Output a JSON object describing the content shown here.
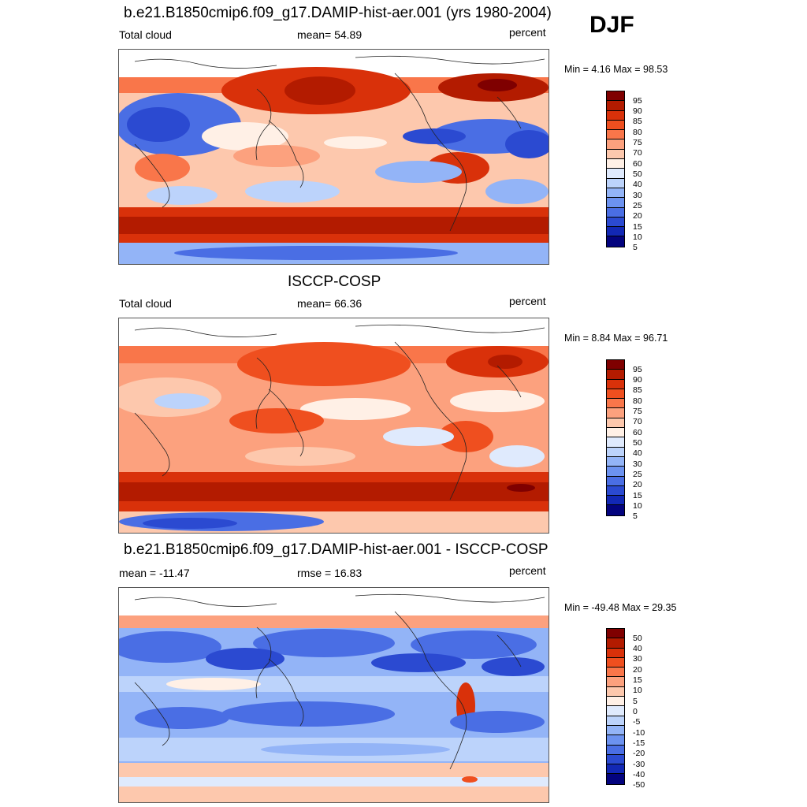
{
  "season": "DJF",
  "panels": [
    {
      "title": "b.e21.B1850cmip6.f09_g17.DAMIP-hist-aer.001 (yrs 1980-2004)",
      "left_label": "Total cloud",
      "center_label": "mean=  54.89",
      "right_label": "percent",
      "minmax": "Min =   4.16 Max =  98.53",
      "colorbar_labels": [
        "95",
        "90",
        "85",
        "80",
        "75",
        "70",
        "60",
        "50",
        "40",
        "30",
        "25",
        "20",
        "15",
        "10",
        "5"
      ]
    },
    {
      "title": "ISCCP-COSP",
      "left_label": "Total cloud",
      "center_label": "mean=  66.36",
      "right_label": "percent",
      "minmax": "Min =   8.84 Max =  96.71",
      "colorbar_labels": [
        "95",
        "90",
        "85",
        "80",
        "75",
        "70",
        "60",
        "50",
        "40",
        "30",
        "25",
        "20",
        "15",
        "10",
        "5"
      ]
    },
    {
      "title": "b.e21.B1850cmip6.f09_g17.DAMIP-hist-aer.001 - ISCCP-COSP",
      "left_label": "mean = -11.47",
      "center_label": "rmse =  16.83",
      "right_label": "percent",
      "minmax": "Min = -49.48 Max =  29.35",
      "colorbar_labels": [
        "50",
        "40",
        "30",
        "20",
        "15",
        "10",
        "5",
        "0",
        "-5",
        "-10",
        "-15",
        "-20",
        "-30",
        "-40",
        "-50"
      ]
    }
  ],
  "colors": {
    "palette": [
      "#7f0000",
      "#b31b00",
      "#d9310a",
      "#ef4f1f",
      "#f9764a",
      "#fca17e",
      "#fdc8ad",
      "#fff0e6",
      "#dfeafd",
      "#bcd3fb",
      "#93b4f7",
      "#6c92f0",
      "#4a6ee4",
      "#2b4ad1",
      "#1228b5",
      "#03037e"
    ]
  }
}
